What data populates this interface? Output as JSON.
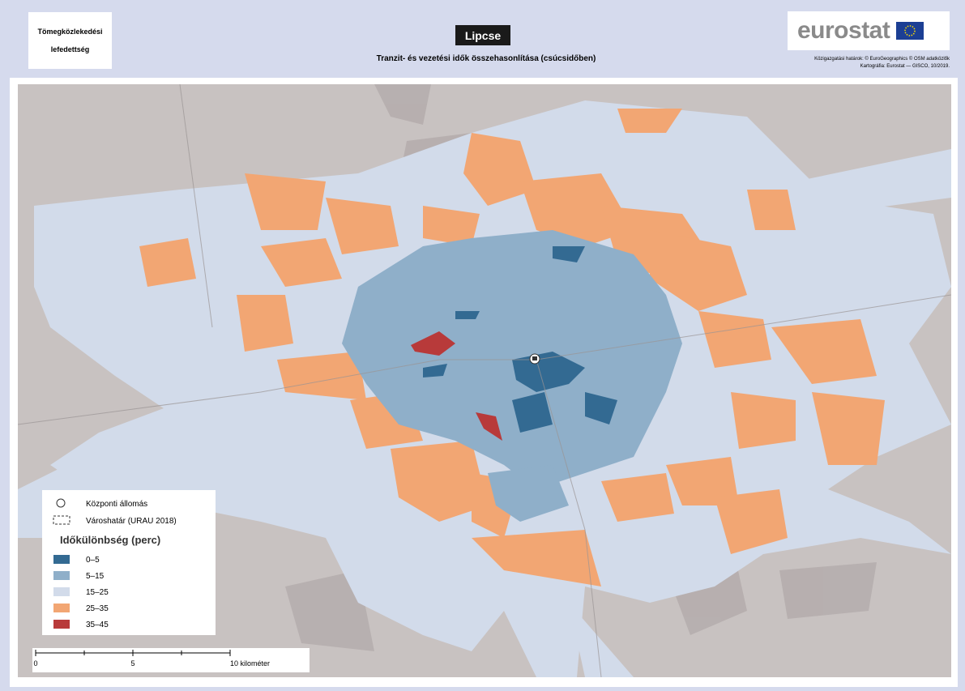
{
  "header": {
    "topic": "Tömegközlekedési lefedettség",
    "title": "Lipcse",
    "subtitle": "Tranzit- és vezetési idők összehasonlítása (csúcsidőben)",
    "logo": "eurostat",
    "credits": [
      "Közigazgatási határok: © EuroGeographics © OSM adatközlők",
      "Kartográfia: Eurostat — GISCO, 10/2019."
    ]
  },
  "legend": {
    "symbols": [
      "Központi állomás",
      "Városhatár (URAU 2018)"
    ],
    "title": "Időkülönbség (perc)",
    "classes": [
      {
        "label": "0–5",
        "color": "#336a92"
      },
      {
        "label": "5–15",
        "color": "#8fafc9"
      },
      {
        "label": "15–25",
        "color": "#d2dbea"
      },
      {
        "label": "25–35",
        "color": "#f2a673"
      },
      {
        "label": "35–45",
        "color": "#b83a3a"
      }
    ]
  },
  "scale_bar": {
    "ticks": [
      "0",
      "5",
      "10 kilométer"
    ]
  }
}
